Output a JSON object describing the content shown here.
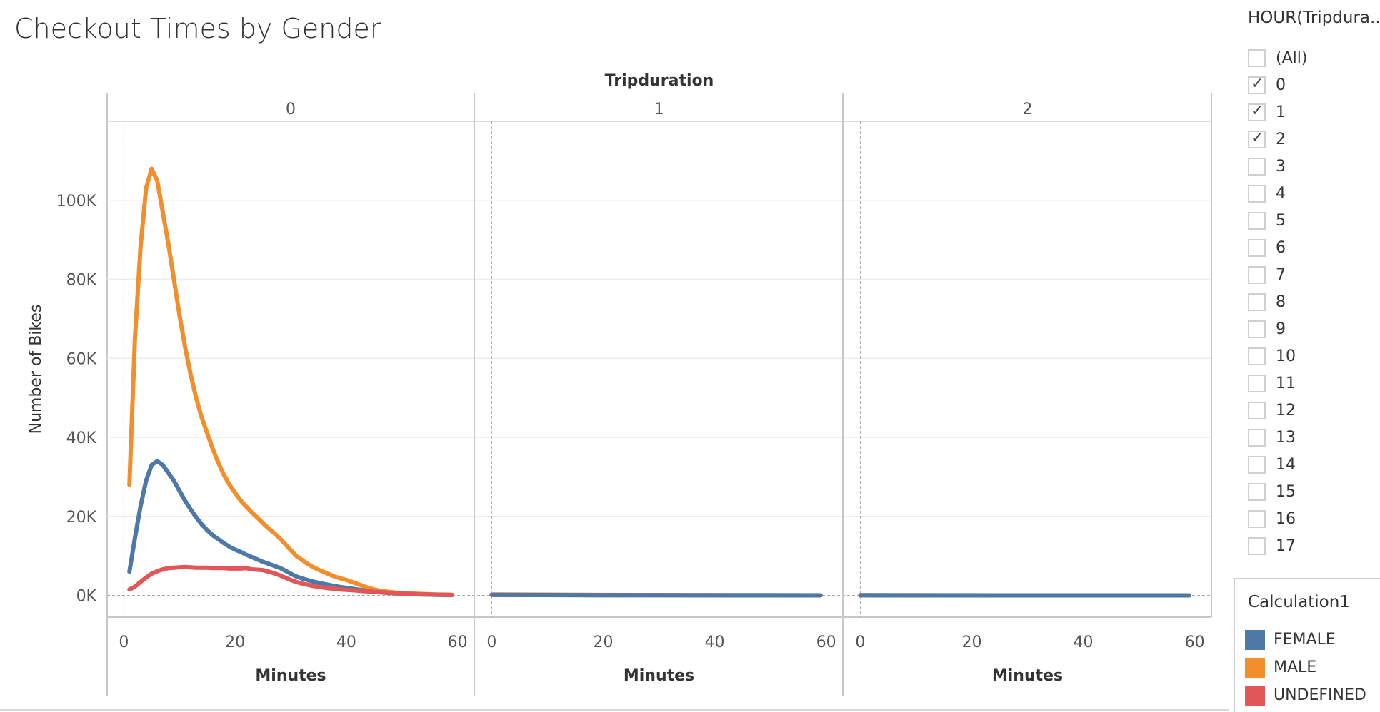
{
  "chart_data": {
    "type": "line",
    "title": "Checkout Times by Gender",
    "column_header": "Tripduration",
    "ylabel": "Number of Bikes",
    "xlabel": "Minutes",
    "ylim": [
      -5500,
      120000
    ],
    "yticks": [
      0,
      20000,
      40000,
      60000,
      80000,
      100000
    ],
    "ytick_labels": [
      "0K",
      "20K",
      "40K",
      "60K",
      "80K",
      "100K"
    ],
    "xlim": [
      -3,
      63
    ],
    "xticks": [
      0,
      20,
      40,
      60
    ],
    "xtick_labels": [
      "0",
      "20",
      "40",
      "60"
    ],
    "grid": true,
    "panels": [
      {
        "label": "0",
        "series": [
          {
            "name": "MALE",
            "color": "#f28e2b",
            "x": [
              1,
              2,
              3,
              4,
              5,
              6,
              7,
              8,
              9,
              10,
              11,
              12,
              13,
              14,
              15,
              16,
              17,
              18,
              19,
              20,
              21,
              22,
              23,
              24,
              25,
              26,
              27,
              28,
              29,
              30,
              31,
              32,
              33,
              34,
              35,
              36,
              37,
              38,
              39,
              40,
              41,
              42,
              43,
              44,
              45,
              46,
              47,
              48,
              49,
              50,
              52,
              54,
              56,
              58,
              59
            ],
            "y": [
              28000,
              65000,
              88000,
              103000,
              108000,
              105000,
              97000,
              89000,
              80000,
              71000,
              63000,
              56000,
              50000,
              45000,
              41000,
              37000,
              33500,
              30500,
              28000,
              26000,
              24000,
              22500,
              21000,
              19700,
              18300,
              17000,
              15800,
              14500,
              13000,
              11500,
              10000,
              9000,
              8000,
              7200,
              6500,
              5900,
              5300,
              4700,
              4300,
              3900,
              3400,
              2900,
              2400,
              1900,
              1500,
              1200,
              1000,
              850,
              700,
              600,
              450,
              350,
              250,
              200,
              150
            ]
          },
          {
            "name": "FEMALE",
            "color": "#4e79a7",
            "x": [
              1,
              2,
              3,
              4,
              5,
              6,
              7,
              8,
              9,
              10,
              11,
              12,
              13,
              14,
              15,
              16,
              17,
              18,
              19,
              20,
              21,
              22,
              23,
              24,
              25,
              26,
              27,
              28,
              29,
              30,
              31,
              32,
              33,
              34,
              35,
              36,
              37,
              38,
              39,
              40,
              41,
              42,
              43,
              44,
              45,
              46,
              47,
              48,
              49,
              50,
              52,
              54,
              56,
              58,
              59
            ],
            "y": [
              6000,
              14500,
              22500,
              29000,
              33000,
              34000,
              33000,
              31000,
              29000,
              26500,
              24000,
              21800,
              19800,
              18000,
              16500,
              15200,
              14200,
              13200,
              12300,
              11600,
              11000,
              10300,
              9700,
              9100,
              8500,
              8000,
              7500,
              7000,
              6300,
              5500,
              4800,
              4300,
              3900,
              3500,
              3200,
              2900,
              2600,
              2350,
              2100,
              1900,
              1700,
              1500,
              1300,
              1100,
              900,
              800,
              700,
              600,
              500,
              400,
              300,
              220,
              150,
              100,
              80
            ]
          },
          {
            "name": "UNDEFINED",
            "color": "#e15759",
            "x": [
              1,
              2,
              3,
              4,
              5,
              6,
              7,
              8,
              9,
              10,
              11,
              12,
              13,
              14,
              15,
              16,
              17,
              18,
              19,
              20,
              21,
              22,
              23,
              24,
              25,
              26,
              27,
              28,
              29,
              30,
              31,
              32,
              33,
              34,
              35,
              36,
              37,
              38,
              39,
              40,
              41,
              42,
              43,
              44,
              45,
              46,
              47,
              48,
              49,
              50,
              52,
              54,
              56,
              58,
              59
            ],
            "y": [
              1500,
              2200,
              3400,
              4500,
              5500,
              6100,
              6600,
              6900,
              7000,
              7100,
              7200,
              7100,
              7000,
              7000,
              7000,
              6900,
              6900,
              6900,
              6800,
              6800,
              6800,
              6900,
              6600,
              6500,
              6400,
              6000,
              5600,
              5100,
              4500,
              3900,
              3400,
              3000,
              2700,
              2400,
              2150,
              1950,
              1800,
              1650,
              1500,
              1400,
              1300,
              1200,
              1100,
              1000,
              900,
              800,
              700,
              600,
              500,
              450,
              350,
              250,
              200,
              150,
              100
            ]
          }
        ]
      },
      {
        "label": "1",
        "series": [
          {
            "name": "MALE",
            "color": "#f28e2b",
            "x": [
              0,
              10,
              20,
              30,
              40,
              50,
              59
            ],
            "y": [
              250,
              180,
              120,
              80,
              50,
              30,
              20
            ]
          },
          {
            "name": "UNDEFINED",
            "color": "#e15759",
            "x": [
              0,
              10,
              20,
              30,
              40,
              50,
              59
            ],
            "y": [
              120,
              90,
              60,
              40,
              30,
              20,
              10
            ]
          },
          {
            "name": "FEMALE",
            "color": "#4e79a7",
            "x": [
              0,
              10,
              20,
              30,
              40,
              50,
              59
            ],
            "y": [
              150,
              100,
              70,
              50,
              30,
              20,
              10
            ]
          }
        ]
      },
      {
        "label": "2",
        "series": [
          {
            "name": "MALE",
            "color": "#f28e2b",
            "x": [
              0,
              10,
              20,
              30,
              40,
              50,
              59
            ],
            "y": [
              40,
              30,
              20,
              15,
              10,
              8,
              5
            ]
          },
          {
            "name": "UNDEFINED",
            "color": "#e15759",
            "x": [
              0,
              10,
              20,
              30,
              40,
              50,
              59
            ],
            "y": [
              20,
              15,
              10,
              8,
              5,
              4,
              3
            ]
          },
          {
            "name": "FEMALE",
            "color": "#4e79a7",
            "x": [
              0,
              10,
              20,
              30,
              40,
              50,
              59
            ],
            "y": [
              30,
              20,
              15,
              10,
              8,
              5,
              3
            ]
          }
        ]
      }
    ]
  },
  "filter": {
    "title": "HOUR(Tripdura...",
    "items": [
      {
        "label": "(All)",
        "checked": false
      },
      {
        "label": "0",
        "checked": true
      },
      {
        "label": "1",
        "checked": true
      },
      {
        "label": "2",
        "checked": true
      },
      {
        "label": "3",
        "checked": false
      },
      {
        "label": "4",
        "checked": false
      },
      {
        "label": "5",
        "checked": false
      },
      {
        "label": "6",
        "checked": false
      },
      {
        "label": "7",
        "checked": false
      },
      {
        "label": "8",
        "checked": false
      },
      {
        "label": "9",
        "checked": false
      },
      {
        "label": "10",
        "checked": false
      },
      {
        "label": "11",
        "checked": false
      },
      {
        "label": "12",
        "checked": false
      },
      {
        "label": "13",
        "checked": false
      },
      {
        "label": "14",
        "checked": false
      },
      {
        "label": "15",
        "checked": false
      },
      {
        "label": "16",
        "checked": false
      },
      {
        "label": "17",
        "checked": false
      }
    ]
  },
  "legend": {
    "title": "Calculation1",
    "items": [
      {
        "label": "FEMALE",
        "color": "#4e79a7"
      },
      {
        "label": "MALE",
        "color": "#f28e2b"
      },
      {
        "label": "UNDEFINED",
        "color": "#e15759"
      }
    ]
  }
}
